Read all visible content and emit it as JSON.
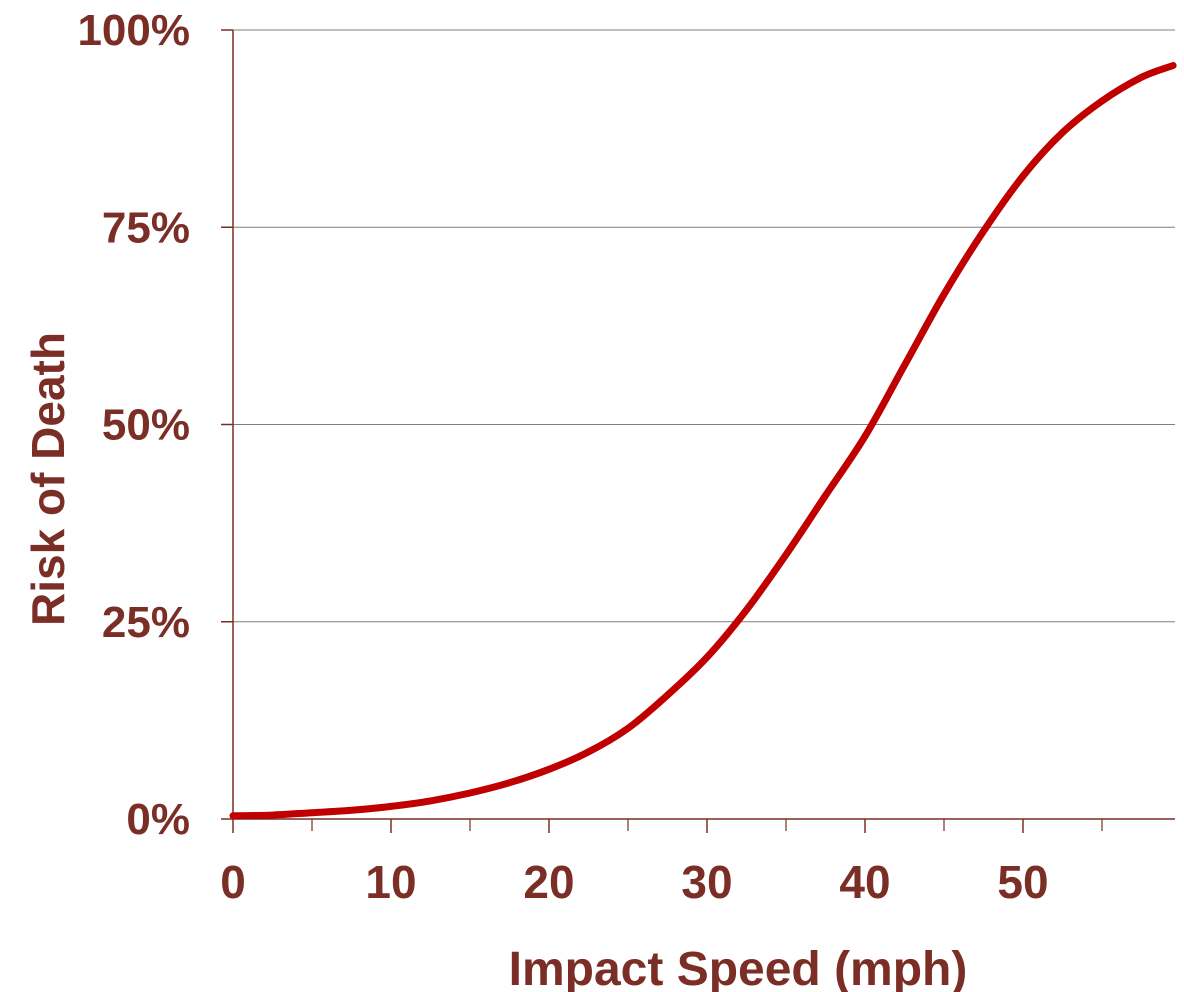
{
  "chart_data": {
    "type": "line",
    "title": "",
    "xlabel": "Impact Speed (mph)",
    "ylabel": "Risk of Death",
    "xlim": [
      0,
      59.5
    ],
    "ylim": [
      0,
      100
    ],
    "x_ticks": [
      0,
      10,
      20,
      30,
      40,
      50
    ],
    "x_tick_labels": [
      "0",
      "10",
      "20",
      "30",
      "40",
      "50"
    ],
    "x_minor_ticks": [
      5,
      15,
      25,
      35,
      45,
      55
    ],
    "y_ticks": [
      0,
      25,
      50,
      75,
      100
    ],
    "y_tick_labels": [
      "0%",
      "25%",
      "50%",
      "75%",
      "100%"
    ],
    "grid": "horizontal",
    "legend": "none",
    "series": [
      {
        "x": [
          0,
          2.5,
          5,
          7.5,
          10,
          12.5,
          15,
          17.5,
          20,
          22.5,
          25,
          27.5,
          30,
          32.5,
          35,
          37.5,
          40,
          42.5,
          45,
          47.5,
          50,
          52.5,
          55,
          57.5,
          59.5
        ],
        "y": [
          0.4,
          0.5,
          0.8,
          1.1,
          1.6,
          2.3,
          3.3,
          4.6,
          6.3,
          8.5,
          11.5,
          15.7,
          20.5,
          26.5,
          33.5,
          41.0,
          48.5,
          57.5,
          66.5,
          74.5,
          81.5,
          87.0,
          91.0,
          94.0,
          95.5
        ]
      }
    ]
  },
  "colors": {
    "line": "#c00000",
    "text": "#7a2e26",
    "axis": "#7a2e26",
    "grid": "#7f7f7f",
    "background": "#ffffff"
  }
}
